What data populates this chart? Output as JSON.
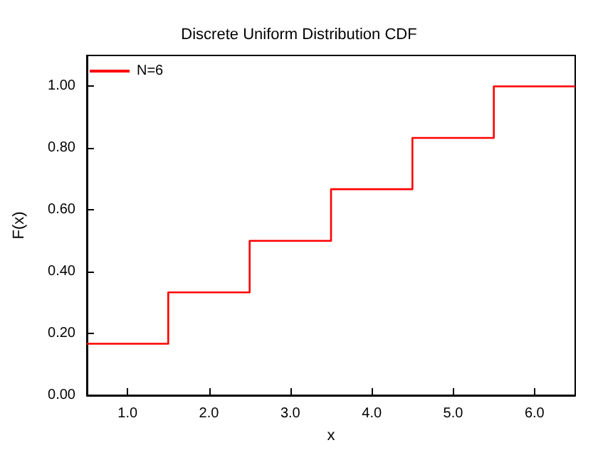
{
  "chart_data": {
    "type": "step",
    "title": "Discrete Uniform Distribution CDF",
    "xlabel": "x",
    "ylabel": "F(x)",
    "x": [
      0.5,
      1.5,
      2.5,
      3.5,
      4.5,
      5.5,
      6.5
    ],
    "series": [
      {
        "name": "N=6",
        "color": "#ff0000",
        "values": [
          0.167,
          0.333,
          0.5,
          0.667,
          0.833,
          1.0,
          1.0
        ]
      }
    ],
    "xlim": [
      0.5,
      6.5
    ],
    "xticks": [
      {
        "value": 1,
        "label": "1.0"
      },
      {
        "value": 2,
        "label": "2.0"
      },
      {
        "value": 3,
        "label": "3.0"
      },
      {
        "value": 4,
        "label": "4.0"
      },
      {
        "value": 5,
        "label": "5.0"
      },
      {
        "value": 6,
        "label": "6.0"
      }
    ],
    "ylim": [
      0,
      1.1
    ],
    "yticks": [
      {
        "value": 0,
        "label": "0.00"
      },
      {
        "value": 0.2,
        "label": "0.20"
      },
      {
        "value": 0.4,
        "label": "0.40"
      },
      {
        "value": 0.6,
        "label": "0.60"
      },
      {
        "value": 0.8,
        "label": "0.80"
      },
      {
        "value": 1,
        "label": "1.00"
      }
    ],
    "legend": "top left",
    "grid": false
  }
}
